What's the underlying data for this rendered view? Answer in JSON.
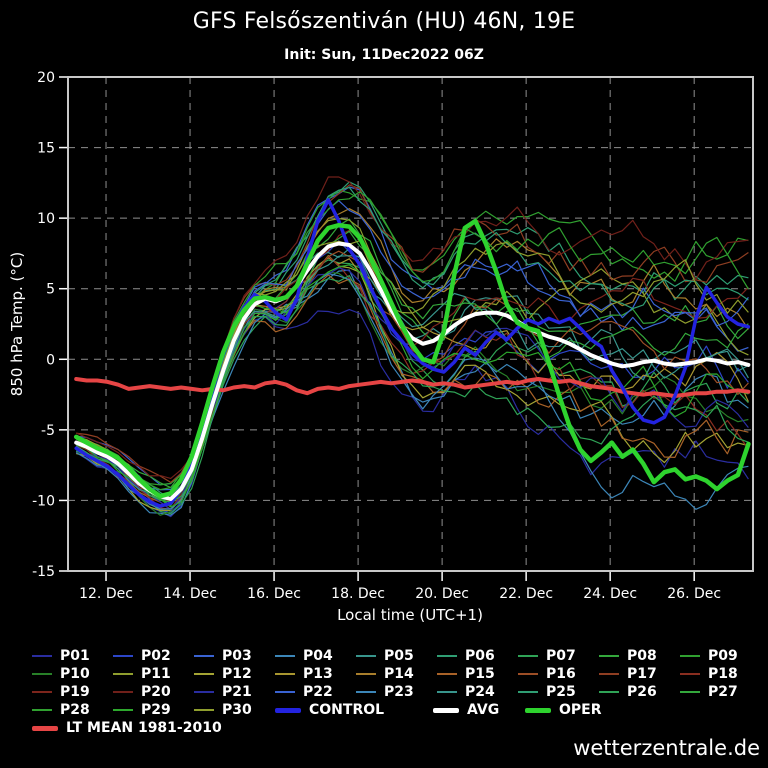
{
  "title": "GFS Felsőszentiván (HU) 46N, 19E",
  "subtitle": "Init: Sun, 11Dec2022 06Z",
  "watermark": "wetterzentrale.de",
  "colors": {
    "background": "#000000",
    "frame": "#c8c8c8",
    "grid": "#8f8f8f",
    "text": "#ffffff"
  },
  "chart_data": {
    "type": "line",
    "title": "GFS Felsőszentiván (HU) 46N, 19E",
    "subtitle": "Init: Sun, 11Dec2022 06Z",
    "xlabel": "Local time (UTC+1)",
    "ylabel": "850 hPa Temp. (°C)",
    "ylim": [
      -15,
      20
    ],
    "yticks": [
      20,
      15,
      10,
      5,
      0,
      -5,
      -10,
      -15
    ],
    "x_domain_days": [
      0.095,
      16.4
    ],
    "xtick_positions_days": [
      1,
      3,
      5,
      7,
      9,
      11,
      13,
      15
    ],
    "xtick_labels": [
      "12. Dec",
      "14. Dec",
      "16. Dec",
      "18. Dec",
      "20. Dec",
      "22. Dec",
      "24. Dec",
      "26. Dec"
    ],
    "grid": "dashed",
    "legend_position": "bottom",
    "t_start_days": 0.29,
    "t_step_days": 0.25,
    "series": [
      {
        "name": "LT MEAN 1981-2010",
        "color": "#e64545",
        "width": 4,
        "values": [
          -1.4,
          -1.5,
          -1.5,
          -1.6,
          -1.8,
          -2.1,
          -2.0,
          -1.9,
          -2.0,
          -2.1,
          -2.0,
          -2.1,
          -2.2,
          -2.1,
          -2.2,
          -2.0,
          -1.9,
          -2.0,
          -1.7,
          -1.6,
          -1.8,
          -2.2,
          -2.4,
          -2.1,
          -2.0,
          -2.1,
          -1.9,
          -1.8,
          -1.7,
          -1.6,
          -1.7,
          -1.6,
          -1.5,
          -1.6,
          -1.8,
          -1.7,
          -1.8,
          -2.0,
          -1.9,
          -1.8,
          -1.7,
          -1.6,
          -1.7,
          -1.5,
          -1.4,
          -1.5,
          -1.6,
          -1.5,
          -1.7,
          -1.9,
          -2.0,
          -2.1,
          -2.3,
          -2.4,
          -2.5,
          -2.4,
          -2.5,
          -2.6,
          -2.5,
          -2.4,
          -2.4,
          -2.3,
          -2.3,
          -2.2,
          -2.3
        ]
      },
      {
        "name": "CONTROL",
        "color": "#2323e0",
        "width": 3.5,
        "values": [
          -6.3,
          -6.8,
          -7.2,
          -7.6,
          -8.2,
          -8.9,
          -9.6,
          -10.1,
          -10.4,
          -10.2,
          -9.2,
          -7.4,
          -4.9,
          -2.2,
          0.3,
          2.3,
          3.7,
          4.6,
          4.1,
          3.3,
          2.8,
          4.3,
          7.2,
          9.8,
          11.3,
          9.8,
          7.8,
          6.7,
          5.1,
          3.6,
          2.2,
          1.3,
          0.4,
          -0.3,
          -0.7,
          -0.9,
          -0.2,
          0.8,
          0.3,
          1.2,
          1.9,
          1.4,
          2.2,
          2.8,
          2.5,
          2.9,
          2.6,
          2.9,
          2.2,
          1.4,
          0.9,
          -0.8,
          -2.0,
          -3.4,
          -4.3,
          -4.5,
          -4.1,
          -2.6,
          -0.6,
          2.9,
          5.1,
          4.0,
          3.0,
          2.5,
          2.3
        ]
      },
      {
        "name": "AVG",
        "color": "#ffffff",
        "width": 4,
        "values": [
          -5.9,
          -6.2,
          -6.6,
          -6.9,
          -7.4,
          -8.1,
          -8.8,
          -9.3,
          -9.7,
          -9.9,
          -9.2,
          -7.8,
          -5.6,
          -3.1,
          -0.8,
          1.3,
          2.9,
          3.9,
          4.3,
          4.1,
          4.4,
          5.2,
          6.3,
          7.3,
          8.0,
          8.2,
          8.1,
          7.5,
          6.3,
          4.9,
          3.5,
          2.3,
          1.5,
          1.1,
          1.3,
          1.8,
          2.4,
          2.9,
          3.2,
          3.3,
          3.3,
          3.1,
          2.7,
          2.2,
          1.9,
          1.6,
          1.4,
          1.1,
          0.7,
          0.3,
          0.0,
          -0.3,
          -0.5,
          -0.4,
          -0.2,
          -0.1,
          -0.3,
          -0.4,
          -0.3,
          -0.2,
          0.0,
          -0.1,
          -0.3,
          -0.2,
          -0.4
        ]
      },
      {
        "name": "OPER",
        "color": "#2ed32e",
        "width": 4.5,
        "values": [
          -5.5,
          -5.9,
          -6.3,
          -6.6,
          -7.0,
          -7.7,
          -8.5,
          -9.2,
          -9.7,
          -9.5,
          -8.5,
          -6.9,
          -4.5,
          -1.9,
          0.5,
          2.3,
          3.5,
          4.3,
          4.4,
          4.2,
          4.4,
          5.2,
          6.8,
          8.4,
          9.3,
          9.5,
          9.4,
          8.6,
          7.2,
          5.6,
          4.0,
          2.4,
          1.0,
          0.0,
          -0.2,
          2.0,
          6.0,
          9.3,
          9.8,
          8.2,
          6.2,
          3.9,
          2.6,
          2.2,
          2.0,
          -0.2,
          -2.6,
          -4.8,
          -6.4,
          -7.2,
          -6.6,
          -5.9,
          -6.9,
          -6.4,
          -7.4,
          -8.7,
          -8.0,
          -7.8,
          -8.5,
          -8.3,
          -8.6,
          -9.2,
          -8.6,
          -8.2,
          -6.0
        ]
      }
    ],
    "ensemble_members": {
      "note": "30 thin spaghetti perturbation members; individual traces not legible in source, recreated as seeded spread around AVG",
      "labels": [
        "P01",
        "P02",
        "P03",
        "P04",
        "P05",
        "P06",
        "P07",
        "P08",
        "P09",
        "P10",
        "P11",
        "P12",
        "P13",
        "P14",
        "P15",
        "P16",
        "P17",
        "P18",
        "P19",
        "P20",
        "P21",
        "P22",
        "P23",
        "P24",
        "P25",
        "P26",
        "P27",
        "P28",
        "P29",
        "P30"
      ],
      "colors": [
        "#2a2da0",
        "#2c46c8",
        "#3a63d2",
        "#3c86b8",
        "#38958c",
        "#2f9e73",
        "#2fa356",
        "#34a83c",
        "#30a030",
        "#288028",
        "#8f9e2e",
        "#a4a434",
        "#a89630",
        "#a87e2c",
        "#a86228",
        "#9c4e26",
        "#8f3e22",
        "#8a2e20",
        "#7d251c",
        "#70201a",
        "#2a2da0",
        "#3a63d2",
        "#3c86b8",
        "#38958c",
        "#2f9e73",
        "#2fa356",
        "#34a83c",
        "#30a030",
        "#2da82d",
        "#8f9e2e"
      ],
      "generation": {
        "seed": 20221211,
        "spread_profile": [
          [
            0.29,
            0.7
          ],
          [
            1.5,
            0.9
          ],
          [
            2.5,
            1.2
          ],
          [
            3.3,
            0.9
          ],
          [
            4.0,
            1.1
          ],
          [
            5.0,
            1.6
          ],
          [
            6.0,
            2.8
          ],
          [
            7.0,
            3.8
          ],
          [
            8.0,
            4.8
          ],
          [
            9.5,
            5.3
          ],
          [
            11.0,
            5.6
          ],
          [
            13.0,
            6.2
          ],
          [
            16.29,
            6.2
          ]
        ],
        "wiggle_base": 0.22,
        "wiggle_growth": 0.1,
        "clamp": [
          -12.7,
          13.9
        ]
      }
    }
  }
}
